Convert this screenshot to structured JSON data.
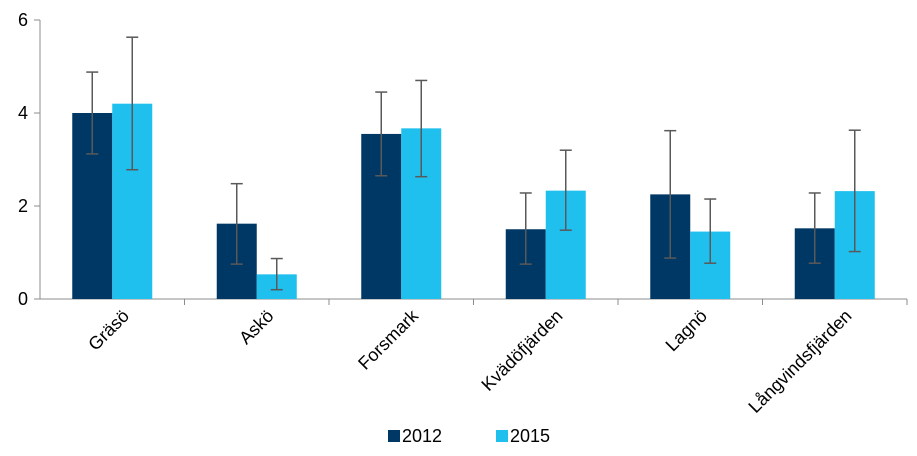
{
  "chart_data": {
    "type": "bar",
    "categories": [
      "Gräsö",
      "Askö",
      "Forsmark",
      "Kvädöfjärden",
      "Lagnö",
      "Långvindsfjärden"
    ],
    "series": [
      {
        "name": "2012",
        "color": "#003865",
        "values": [
          4.0,
          1.62,
          3.55,
          1.5,
          2.25,
          1.52
        ],
        "error_low": [
          3.12,
          0.75,
          2.65,
          0.75,
          0.88,
          0.77
        ],
        "error_high": [
          4.88,
          2.48,
          4.45,
          2.28,
          3.62,
          2.28
        ]
      },
      {
        "name": "2015",
        "color": "#1fc0ee",
        "values": [
          4.2,
          0.53,
          3.67,
          2.33,
          1.45,
          2.32
        ],
        "error_low": [
          2.78,
          0.2,
          2.63,
          1.48,
          0.77,
          1.02
        ],
        "error_high": [
          5.63,
          0.87,
          4.7,
          3.2,
          2.15,
          3.63
        ]
      }
    ],
    "yticks": [
      0,
      2,
      4,
      6
    ],
    "ylim": [
      0,
      6
    ],
    "legend_position": "bottom",
    "grid": false,
    "title": "",
    "xlabel": "",
    "ylabel": ""
  }
}
